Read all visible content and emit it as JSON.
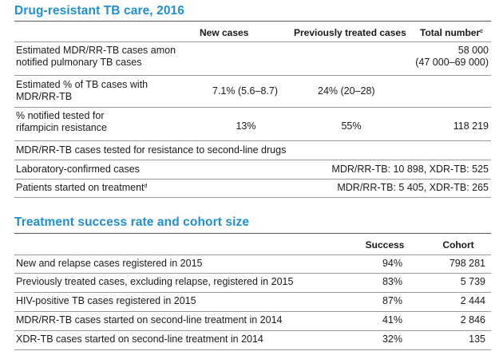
{
  "section1": {
    "title": "Drug-resistant TB care, 2016",
    "col_new": "New cases",
    "col_prev": "Previously treated cases",
    "col_total": "Total number",
    "col_total_sup": "c",
    "rows": [
      {
        "label_l1": "Estimated MDR/RR-TB cases amon",
        "label_l2": "notified pulmonary TB cases",
        "total_l1": "58 000",
        "total_l2": "(47 000–69 000)"
      },
      {
        "label_l1": "Estimated % of TB cases with",
        "label_l2": "MDR/RR-TB",
        "new": "7.1% (5.6–8.7)",
        "prev": "24% (20–28)"
      },
      {
        "label_l1": "% notified tested for",
        "label_l2": "rifampicin resistance",
        "new": "13%",
        "prev": "55%",
        "total": "118 219"
      },
      {
        "label": "MDR/RR-TB cases tested for resistance to second-line drugs"
      },
      {
        "label": "Laboratory-confirmed cases",
        "value": "MDR/RR-TB: 10 898, XDR-TB: 525"
      },
      {
        "label": "Patients started on treatment",
        "label_sup": "d",
        "value": "MDR/RR-TB: 5 405, XDR-TB: 265"
      }
    ]
  },
  "section2": {
    "title": "Treatment success rate and cohort size",
    "col_success": "Success",
    "col_cohort": "Cohort",
    "rows": [
      {
        "label": "New and relapse cases registered in 2015",
        "success": "94%",
        "cohort": "798 281"
      },
      {
        "label": "Previously treated cases, excluding relapse, registered in 2015",
        "success": "83%",
        "cohort": "5 739"
      },
      {
        "label": "HIV-positive TB cases registered in 2015",
        "success": "87%",
        "cohort": "2 444"
      },
      {
        "label": "MDR/RR-TB cases started on second-line treatment in 2014",
        "success": "41%",
        "cohort": "2 846"
      },
      {
        "label": "XDR-TB cases started on second-line treatment in 2014",
        "success": "32%",
        "cohort": "135"
      }
    ]
  }
}
